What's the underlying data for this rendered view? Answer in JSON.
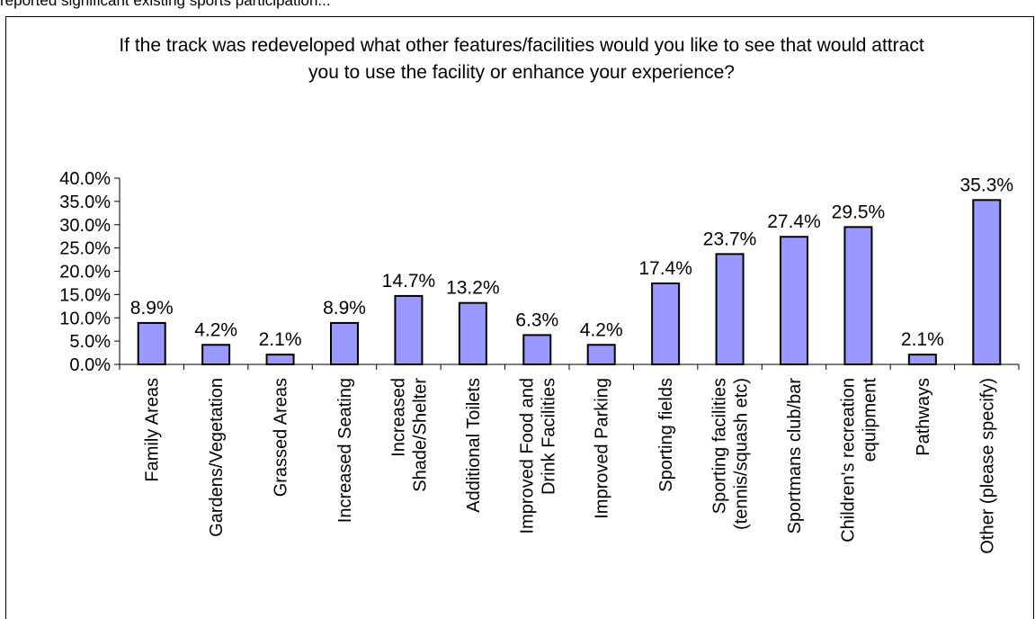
{
  "header_fragment": "reported significant existing sports participation...",
  "chart_data": {
    "type": "bar",
    "title": "If the track was redeveloped what other features/facilities would you like to see that would attract you to use the facility or enhance your experience?",
    "categories": [
      "Family Areas",
      "Gardens/Vegetation",
      "Grassed Areas",
      "Increased Seating",
      "Increased Shade/Shelter",
      "Additional Toilets",
      "Improved Food and Drink Facilities",
      "Improved Parking",
      "Sporting fields",
      "Sporting facilities (tennis/squash etc)",
      "Sportmans club/bar",
      "Children's recreation equipment",
      "Pathways",
      "Other (please specify)"
    ],
    "category_label_lines": [
      [
        "Family Areas"
      ],
      [
        "Gardens/Vegetation"
      ],
      [
        "Grassed Areas"
      ],
      [
        "Increased Seating"
      ],
      [
        "Increased",
        "Shade/Shelter"
      ],
      [
        "Additional Toilets"
      ],
      [
        "Improved Food and",
        "Drink Facilities"
      ],
      [
        "Improved Parking"
      ],
      [
        "Sporting fields"
      ],
      [
        "Sporting facilities",
        "(tennis/squash  etc)"
      ],
      [
        "Sportmans club/bar"
      ],
      [
        "Children's recreation",
        "equipment"
      ],
      [
        "Pathways"
      ],
      [
        "Other (please specify)"
      ]
    ],
    "values": [
      8.9,
      4.2,
      2.1,
      8.9,
      14.7,
      13.2,
      6.3,
      4.2,
      17.4,
      23.7,
      27.4,
      29.5,
      2.1,
      35.3
    ],
    "data_labels": [
      "8.9%",
      "4.2%",
      "2.1%",
      "8.9%",
      "14.7%",
      "13.2%",
      "6.3%",
      "4.2%",
      "17.4%",
      "23.7%",
      "27.4%",
      "29.5%",
      "2.1%",
      "35.3%"
    ],
    "yticks": [
      "0.0%",
      "5.0%",
      "10.0%",
      "15.0%",
      "20.0%",
      "25.0%",
      "30.0%",
      "35.0%",
      "40.0%"
    ],
    "ylim": [
      0,
      40
    ],
    "xlabel": "",
    "ylabel": "",
    "grid": false,
    "legend": "none",
    "bar_color": "#9999ff",
    "bar_stroke": "#000000"
  }
}
